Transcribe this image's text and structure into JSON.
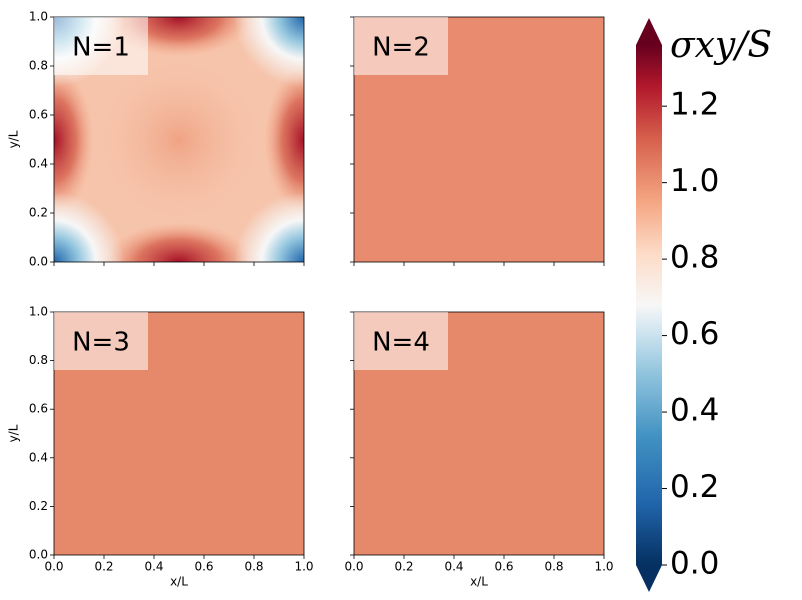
{
  "chart_data": [
    {
      "type": "heatmap",
      "title": "N=1",
      "ylabel": "y/L",
      "xlim": [
        0,
        1
      ],
      "ylim": [
        0,
        1
      ],
      "xticks": [
        {
          "value": 0,
          "label": "0.0"
        },
        0.2,
        0.4,
        0.6,
        0.8,
        {
          "value": 1,
          "label": "1.0"
        }
      ],
      "yticks": [
        {
          "value": 0,
          "label": "0.0"
        },
        0.2,
        0.4,
        0.6,
        0.8,
        {
          "value": 1,
          "label": "1.0"
        }
      ],
      "xticklabels": false,
      "yticklabels": true
    },
    {
      "type": "heatmap",
      "title": "N=2",
      "xlim": [
        0,
        1
      ],
      "ylim": [
        0,
        1
      ],
      "xticks": [
        {
          "value": 0,
          "label": "0.0"
        },
        0.2,
        0.4,
        0.6,
        0.8,
        {
          "value": 1,
          "label": "1.0"
        }
      ],
      "yticks": [
        {
          "value": 0,
          "label": "0.0"
        },
        0.2,
        0.4,
        0.6,
        0.8,
        {
          "value": 1,
          "label": "1.0"
        }
      ],
      "xticklabels": false,
      "yticklabels": false
    },
    {
      "type": "heatmap",
      "title": "N=3",
      "xlabel": "x/L",
      "ylabel": "y/L",
      "xlim": [
        0,
        1
      ],
      "ylim": [
        0,
        1
      ],
      "xticks": [
        {
          "value": 0,
          "label": "0.0"
        },
        0.2,
        0.4,
        0.6,
        0.8,
        {
          "value": 1,
          "label": "1.0"
        }
      ],
      "yticks": [
        {
          "value": 0,
          "label": "0.0"
        },
        0.2,
        0.4,
        0.6,
        0.8,
        {
          "value": 1,
          "label": "1.0"
        }
      ],
      "xticklabels": true,
      "yticklabels": true
    },
    {
      "type": "heatmap",
      "title": "N=4",
      "xlabel": "x/L",
      "xlim": [
        0,
        1
      ],
      "ylim": [
        0,
        1
      ],
      "xticks": [
        {
          "value": 0,
          "label": "0.0"
        },
        0.2,
        0.4,
        0.6,
        0.8,
        {
          "value": 1,
          "label": "1.0"
        }
      ],
      "yticks": [
        {
          "value": 0,
          "label": "0.0"
        },
        0.2,
        0.4,
        0.6,
        0.8,
        {
          "value": 1,
          "label": "1.0"
        }
      ],
      "xticklabels": true,
      "yticklabels": false
    },
    {
      "type": "colorbar",
      "label": "σxy/S",
      "ylim": [
        0,
        1.36
      ],
      "yticks": [
        {
          "value": 0,
          "label": "0.0"
        },
        0.2,
        0.4,
        0.6,
        0.8,
        {
          "value": 1,
          "label": "1.0"
        },
        1.2
      ]
    }
  ]
}
